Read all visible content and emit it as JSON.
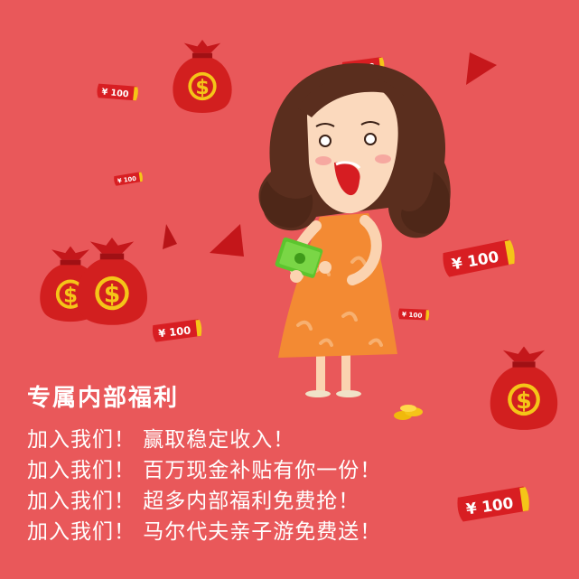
{
  "promo": {
    "title": "专属内部福利",
    "lines": [
      "加入我们！ 赢取稳定收入！",
      "加入我们！ 百万现金补贴有你一份！",
      "加入我们！ 超多内部福利免费抢！",
      "加入我们！ 马尔代夫亲子游免费送！"
    ]
  },
  "bills": {
    "label": "¥ 100"
  },
  "icons": {
    "money_bag": "money-bag-icon",
    "banknote": "banknote-icon",
    "coin": "coin-icon",
    "confetti": "confetti-triangle-icon"
  },
  "colors": {
    "background": "#e9585a",
    "bag_red": "#d21f1f",
    "gold": "#f5c518",
    "bill_red": "#d81e22",
    "dress": "#f38a33",
    "hair": "#5a2e1e",
    "cash_green": "#5cc52e"
  }
}
